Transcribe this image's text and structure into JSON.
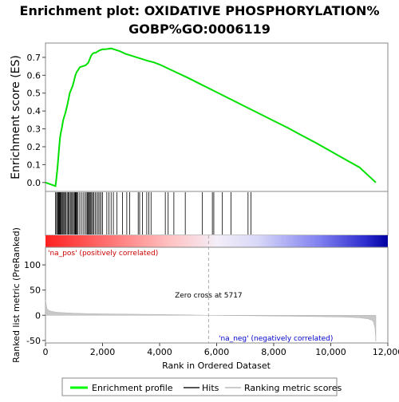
{
  "title_line1": "Enrichment plot: OXIDATIVE PHOSPHORYLATION%",
  "title_line2": "GOBP%GO:0006119",
  "chart_data": {
    "type": "line",
    "title": "Enrichment plot: OXIDATIVE PHOSPHORYLATION% GOBP%GO:0006119",
    "xlabel": "Rank in Ordered Dataset",
    "x_ticks": [
      0,
      2000,
      4000,
      6000,
      8000,
      10000,
      12000
    ],
    "xlim": [
      0,
      12000
    ],
    "top_panel": {
      "ylabel": "Enrichment score (ES)",
      "ylim": [
        -0.05,
        0.78
      ],
      "y_ticks": [
        0.0,
        0.1,
        0.2,
        0.3,
        0.4,
        0.5,
        0.6,
        0.7
      ],
      "series": [
        {
          "name": "Enrichment profile",
          "color": "#00ff00",
          "x": [
            0,
            350,
            380,
            420,
            450,
            480,
            510,
            540,
            580,
            620,
            660,
            700,
            760,
            800,
            850,
            900,
            950,
            1000,
            1050,
            1100,
            1150,
            1200,
            1300,
            1400,
            1500,
            1550,
            1600,
            1650,
            1700,
            1750,
            1800,
            1850,
            1900,
            2000,
            2100,
            2200,
            2300,
            2400,
            2600,
            2800,
            3000,
            3200,
            3400,
            3600,
            3800,
            4000,
            4400,
            5000,
            5500,
            6000,
            6500,
            7000,
            7500,
            8000,
            8500,
            9000,
            9500,
            10000,
            10500,
            11000,
            11580
          ],
          "y": [
            0.0,
            -0.02,
            0.02,
            0.08,
            0.14,
            0.2,
            0.25,
            0.28,
            0.31,
            0.35,
            0.37,
            0.39,
            0.43,
            0.46,
            0.5,
            0.52,
            0.54,
            0.57,
            0.6,
            0.62,
            0.63,
            0.645,
            0.65,
            0.655,
            0.67,
            0.69,
            0.71,
            0.72,
            0.725,
            0.725,
            0.73,
            0.735,
            0.74,
            0.745,
            0.745,
            0.748,
            0.75,
            0.745,
            0.735,
            0.72,
            0.71,
            0.7,
            0.69,
            0.68,
            0.672,
            0.66,
            0.63,
            0.585,
            0.545,
            0.505,
            0.465,
            0.425,
            0.385,
            0.345,
            0.305,
            0.262,
            0.22,
            0.175,
            0.13,
            0.085,
            0.0
          ]
        }
      ]
    },
    "hits": {
      "name": "Hits",
      "ranks": [
        350,
        390,
        420,
        450,
        470,
        490,
        510,
        530,
        560,
        590,
        620,
        650,
        690,
        720,
        760,
        800,
        830,
        870,
        900,
        940,
        980,
        1010,
        1040,
        1060,
        1080,
        1110,
        1140,
        1200,
        1260,
        1320,
        1380,
        1430,
        1470,
        1500,
        1530,
        1560,
        1590,
        1620,
        1660,
        1700,
        1750,
        1800,
        1850,
        1900,
        1950,
        2000,
        2150,
        2220,
        2300,
        2380,
        2500,
        2700,
        2850,
        2950,
        3250,
        3300,
        3400,
        3550,
        3620,
        3700,
        4200,
        4300,
        4500,
        4900,
        5500,
        5850,
        5900,
        6200,
        6500,
        7100,
        7200
      ]
    },
    "bottom_panel": {
      "ylabel": "Ranked list metric (PreRanked)",
      "ylim": [
        -55,
        135
      ],
      "y_ticks": [
        -50,
        0,
        50,
        100
      ],
      "series_name": "Ranking metric scores",
      "x": [
        0,
        50,
        100,
        200,
        400,
        700,
        1000,
        1500,
        2000,
        3000,
        4000,
        5000,
        5717,
        6500,
        7500,
        8500,
        9500,
        10000,
        10500,
        11000,
        11300,
        11450,
        11500,
        11550,
        11580
      ],
      "y": [
        30,
        14,
        10,
        8,
        6,
        5,
        4,
        3.2,
        2.8,
        2.2,
        1.6,
        0.8,
        0,
        -0.6,
        -1.2,
        -1.8,
        -2.6,
        -3,
        -3.6,
        -5,
        -7,
        -10,
        -14,
        -25,
        -52
      ],
      "zero_cross_label": "Zero cross at 5717",
      "zero_cross": 5717,
      "pos_label": "'na_pos' (positively correlated)",
      "neg_label": "'na_neg' (negatively correlated)"
    },
    "legend": {
      "placement": "bottom",
      "entries": [
        {
          "label": "Enrichment profile",
          "color": "#00ff00"
        },
        {
          "label": "Hits",
          "color": "#555555"
        },
        {
          "label": "Ranking metric scores",
          "color": "#cccccc"
        }
      ]
    },
    "grid": false
  }
}
